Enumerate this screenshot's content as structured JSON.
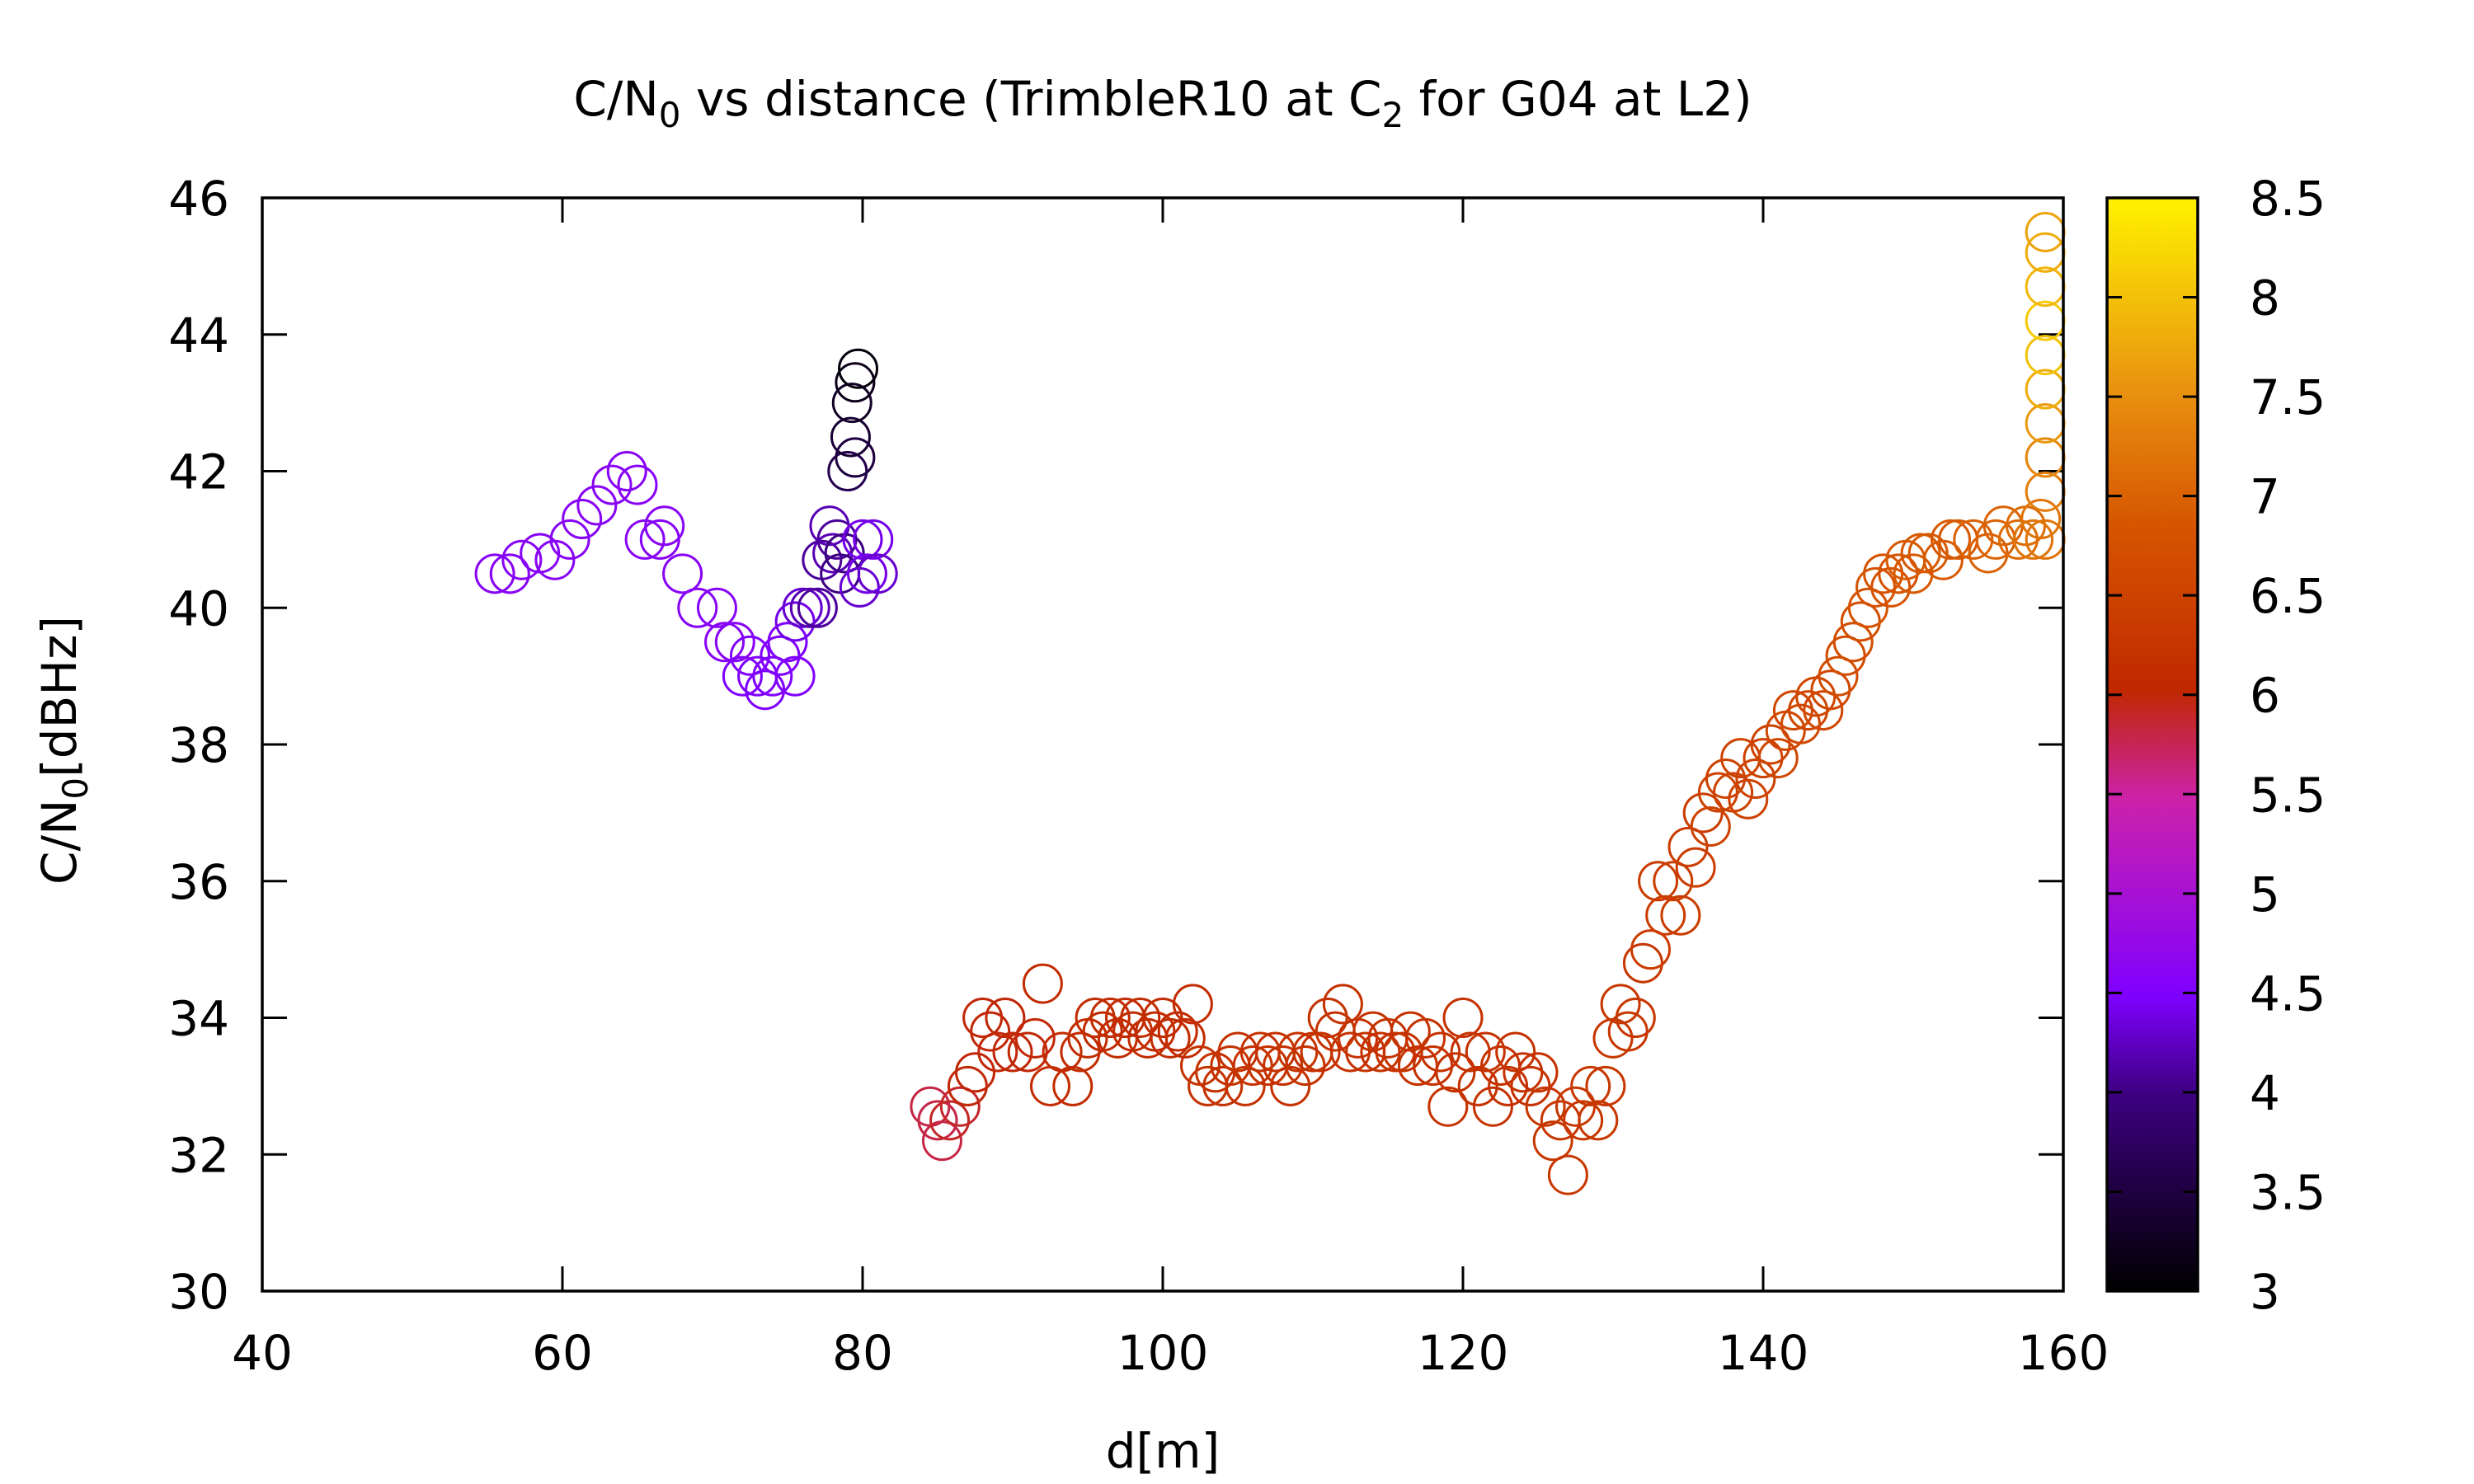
{
  "chart_data": {
    "type": "scatter",
    "title": "C/N₀ vs distance (TrimbleR10 at C₂ for G04 at L2)",
    "title_parts": {
      "pre": "C/N",
      "sub1": "0",
      "mid": " vs distance (TrimbleR10 at C",
      "sub2": "2",
      "post": " for G04 at L2)"
    },
    "xlabel": "d[m]",
    "ylabel": "C/N₀[dBHz]",
    "ylabel_parts": {
      "pre": "C/N",
      "sub": "0",
      "post": "[dBHz]"
    },
    "xlim": [
      40,
      160
    ],
    "ylim": [
      30,
      46
    ],
    "x_ticks": [
      40,
      60,
      80,
      100,
      120,
      140,
      160
    ],
    "y_ticks": [
      30,
      32,
      34,
      36,
      38,
      40,
      42,
      44,
      46
    ],
    "grid": false,
    "legend": "none",
    "marker": "open circle",
    "colorbar": {
      "range": [
        3,
        8.5
      ],
      "ticks": [
        "3",
        "3.5",
        "4",
        "4.5",
        "5",
        "5.5",
        "6",
        "6.5",
        "7",
        "7.5",
        "8",
        "8.5"
      ],
      "palette": [
        "#000000",
        "#3c0080",
        "#7f00ff",
        "#cc22aa",
        "#d63200",
        "#e8800a",
        "#ffe800",
        "#fff000"
      ]
    },
    "points": [
      [
        55.5,
        40.5,
        4.6
      ],
      [
        56.5,
        40.5,
        4.6
      ],
      [
        57.3,
        40.7,
        4.6
      ],
      [
        58.5,
        40.8,
        4.6
      ],
      [
        59.5,
        40.7,
        4.6
      ],
      [
        60.5,
        41.0,
        4.6
      ],
      [
        61.3,
        41.3,
        4.6
      ],
      [
        62.3,
        41.5,
        4.6
      ],
      [
        63.3,
        41.8,
        4.6
      ],
      [
        64.3,
        42.0,
        4.6
      ],
      [
        65.0,
        41.8,
        4.6
      ],
      [
        65.5,
        41.0,
        4.6
      ],
      [
        66.5,
        41.0,
        4.6
      ],
      [
        66.8,
        41.2,
        4.6
      ],
      [
        68.0,
        40.5,
        4.6
      ],
      [
        69.0,
        40.0,
        4.6
      ],
      [
        70.3,
        40.0,
        4.6
      ],
      [
        70.8,
        39.5,
        4.6
      ],
      [
        71.5,
        39.5,
        4.6
      ],
      [
        72.0,
        39.0,
        4.5
      ],
      [
        72.5,
        39.3,
        4.5
      ],
      [
        73.0,
        39.0,
        4.5
      ],
      [
        73.5,
        38.8,
        4.5
      ],
      [
        74.0,
        39.0,
        4.5
      ],
      [
        74.5,
        39.3,
        4.5
      ],
      [
        75.0,
        39.5,
        4.5
      ],
      [
        75.5,
        39.0,
        4.5
      ],
      [
        75.5,
        39.8,
        4.4
      ],
      [
        76.0,
        40.0,
        4.3
      ],
      [
        76.5,
        40.0,
        4.2
      ],
      [
        77.0,
        40.0,
        4.1
      ],
      [
        77.3,
        40.7,
        4.1
      ],
      [
        77.8,
        41.2,
        4.2
      ],
      [
        78.0,
        40.8,
        4.2
      ],
      [
        78.3,
        41.0,
        4.1
      ],
      [
        78.5,
        40.5,
        4.0
      ],
      [
        78.8,
        40.8,
        4.0
      ],
      [
        79.0,
        42.0,
        3.6
      ],
      [
        79.2,
        42.5,
        3.4
      ],
      [
        79.3,
        43.0,
        3.3
      ],
      [
        79.5,
        43.3,
        3.2
      ],
      [
        79.7,
        43.5,
        3.1
      ],
      [
        79.5,
        42.2,
        3.5
      ],
      [
        79.8,
        40.3,
        4.3
      ],
      [
        80.0,
        41.0,
        4.4
      ],
      [
        80.3,
        40.5,
        4.4
      ],
      [
        80.7,
        41.0,
        4.4
      ],
      [
        81.0,
        40.5,
        4.3
      ],
      [
        84.5,
        32.7,
        5.8
      ],
      [
        85.0,
        32.5,
        5.8
      ],
      [
        85.3,
        32.2,
        5.8
      ],
      [
        85.8,
        32.5,
        5.9
      ],
      [
        86.5,
        32.7,
        5.9
      ],
      [
        87.0,
        33.0,
        6.0
      ],
      [
        87.5,
        33.2,
        6.0
      ],
      [
        88.0,
        34.0,
        6.0
      ],
      [
        88.5,
        33.8,
        6.0
      ],
      [
        89.0,
        33.5,
        6.0
      ],
      [
        89.5,
        34.0,
        6.0
      ],
      [
        90.0,
        33.5,
        6.0
      ],
      [
        91.0,
        33.5,
        6.0
      ],
      [
        91.5,
        33.7,
        6.0
      ],
      [
        92.0,
        34.5,
        6.1
      ],
      [
        92.5,
        33.0,
        6.1
      ],
      [
        93.3,
        33.5,
        6.1
      ],
      [
        94.0,
        33.0,
        6.1
      ],
      [
        94.5,
        33.5,
        6.1
      ],
      [
        95.0,
        33.7,
        6.1
      ],
      [
        95.5,
        34.0,
        6.1
      ],
      [
        96.0,
        33.8,
        6.1
      ],
      [
        96.5,
        34.0,
        6.1
      ],
      [
        97.0,
        33.7,
        6.1
      ],
      [
        97.5,
        34.0,
        6.1
      ],
      [
        98.0,
        33.8,
        6.1
      ],
      [
        98.5,
        34.0,
        6.1
      ],
      [
        99.0,
        33.7,
        6.1
      ],
      [
        99.5,
        33.8,
        6.1
      ],
      [
        100.0,
        34.0,
        6.1
      ],
      [
        100.5,
        33.7,
        6.1
      ],
      [
        101.0,
        33.8,
        6.1
      ],
      [
        101.5,
        33.7,
        6.1
      ],
      [
        102.0,
        34.2,
        6.1
      ],
      [
        102.5,
        33.3,
        6.2
      ],
      [
        103.0,
        33.0,
        6.2
      ],
      [
        103.5,
        33.2,
        6.2
      ],
      [
        104.0,
        33.0,
        6.2
      ],
      [
        104.5,
        33.3,
        6.2
      ],
      [
        105.0,
        33.5,
        6.2
      ],
      [
        105.5,
        33.0,
        6.2
      ],
      [
        106.0,
        33.3,
        6.2
      ],
      [
        106.5,
        33.5,
        6.2
      ],
      [
        107.0,
        33.3,
        6.2
      ],
      [
        107.5,
        33.5,
        6.2
      ],
      [
        108.0,
        33.3,
        6.2
      ],
      [
        108.5,
        33.0,
        6.2
      ],
      [
        109.0,
        33.5,
        6.2
      ],
      [
        109.5,
        33.3,
        6.2
      ],
      [
        110.0,
        33.5,
        6.2
      ],
      [
        110.5,
        33.5,
        6.2
      ],
      [
        111.0,
        34.0,
        6.2
      ],
      [
        111.5,
        33.8,
        6.2
      ],
      [
        112.0,
        34.2,
        6.2
      ],
      [
        112.5,
        33.5,
        6.2
      ],
      [
        113.0,
        33.7,
        6.2
      ],
      [
        113.5,
        33.5,
        6.2
      ],
      [
        114.0,
        33.8,
        6.2
      ],
      [
        114.5,
        33.5,
        6.2
      ],
      [
        115.0,
        33.7,
        6.2
      ],
      [
        115.5,
        33.5,
        6.2
      ],
      [
        116.0,
        33.5,
        6.2
      ],
      [
        116.5,
        33.8,
        6.2
      ],
      [
        117.0,
        33.3,
        6.2
      ],
      [
        117.5,
        33.7,
        6.2
      ],
      [
        118.0,
        33.3,
        6.2
      ],
      [
        118.5,
        33.5,
        6.2
      ],
      [
        119.0,
        32.7,
        6.2
      ],
      [
        119.5,
        33.2,
        6.2
      ],
      [
        120.0,
        34.0,
        6.2
      ],
      [
        120.5,
        33.5,
        6.2
      ],
      [
        121.0,
        33.0,
        6.2
      ],
      [
        121.5,
        33.5,
        6.2
      ],
      [
        122.0,
        32.7,
        6.2
      ],
      [
        122.5,
        33.3,
        6.2
      ],
      [
        123.0,
        33.0,
        6.2
      ],
      [
        123.5,
        33.5,
        6.2
      ],
      [
        124.0,
        33.2,
        6.2
      ],
      [
        124.5,
        33.0,
        6.2
      ],
      [
        125.0,
        33.2,
        6.2
      ],
      [
        125.5,
        32.7,
        6.3
      ],
      [
        126.0,
        32.2,
        6.3
      ],
      [
        126.5,
        32.5,
        6.3
      ],
      [
        127.0,
        31.7,
        6.3
      ],
      [
        127.5,
        32.7,
        6.3
      ],
      [
        128.0,
        32.5,
        6.3
      ],
      [
        128.5,
        33.0,
        6.3
      ],
      [
        129.0,
        32.5,
        6.3
      ],
      [
        129.5,
        33.0,
        6.3
      ],
      [
        130.0,
        33.7,
        6.3
      ],
      [
        130.5,
        34.2,
        6.3
      ],
      [
        131.0,
        33.8,
        6.3
      ],
      [
        131.5,
        34.0,
        6.3
      ],
      [
        132.0,
        34.8,
        6.3
      ],
      [
        132.5,
        35.0,
        6.4
      ],
      [
        133.0,
        36.0,
        6.4
      ],
      [
        133.5,
        35.5,
        6.4
      ],
      [
        134.0,
        36.0,
        6.4
      ],
      [
        134.5,
        35.5,
        6.4
      ],
      [
        135.0,
        36.5,
        6.4
      ],
      [
        135.5,
        36.2,
        6.4
      ],
      [
        136.0,
        37.0,
        6.4
      ],
      [
        136.5,
        36.8,
        6.5
      ],
      [
        137.0,
        37.3,
        6.5
      ],
      [
        137.5,
        37.5,
        6.5
      ],
      [
        138.0,
        37.3,
        6.5
      ],
      [
        138.5,
        37.8,
        6.5
      ],
      [
        139.0,
        37.2,
        6.5
      ],
      [
        139.5,
        37.5,
        6.5
      ],
      [
        140.0,
        37.8,
        6.5
      ],
      [
        140.5,
        38.0,
        6.5
      ],
      [
        141.0,
        37.8,
        6.6
      ],
      [
        141.5,
        38.2,
        6.6
      ],
      [
        142.0,
        38.5,
        6.6
      ],
      [
        142.5,
        38.3,
        6.6
      ],
      [
        143.0,
        38.5,
        6.6
      ],
      [
        143.5,
        38.7,
        6.6
      ],
      [
        144.0,
        38.5,
        6.6
      ],
      [
        144.5,
        38.8,
        6.6
      ],
      [
        145.0,
        39.0,
        6.7
      ],
      [
        145.5,
        39.3,
        6.7
      ],
      [
        146.0,
        39.5,
        6.7
      ],
      [
        146.5,
        39.8,
        6.7
      ],
      [
        147.0,
        40.0,
        6.8
      ],
      [
        147.5,
        40.3,
        6.8
      ],
      [
        148.0,
        40.5,
        6.8
      ],
      [
        148.5,
        40.3,
        6.8
      ],
      [
        149.0,
        40.5,
        6.8
      ],
      [
        149.5,
        40.7,
        6.9
      ],
      [
        150.0,
        40.5,
        6.9
      ],
      [
        150.5,
        40.8,
        6.9
      ],
      [
        151.0,
        40.8,
        6.9
      ],
      [
        152.0,
        40.7,
        6.9
      ],
      [
        152.5,
        41.0,
        6.9
      ],
      [
        153.0,
        41.0,
        6.9
      ],
      [
        154.0,
        41.0,
        7.0
      ],
      [
        155.0,
        40.8,
        7.0
      ],
      [
        155.5,
        41.0,
        7.0
      ],
      [
        156.0,
        41.2,
        7.0
      ],
      [
        157.0,
        41.0,
        7.1
      ],
      [
        157.5,
        41.2,
        7.1
      ],
      [
        158.0,
        41.0,
        7.2
      ],
      [
        158.5,
        41.3,
        7.2
      ],
      [
        158.8,
        41.7,
        7.3
      ],
      [
        158.8,
        42.2,
        7.4
      ],
      [
        158.8,
        42.7,
        7.6
      ],
      [
        158.8,
        43.2,
        7.8
      ],
      [
        158.8,
        43.7,
        8.0
      ],
      [
        158.8,
        44.2,
        8.1
      ],
      [
        158.8,
        44.7,
        7.9
      ],
      [
        158.8,
        45.2,
        7.8
      ],
      [
        158.8,
        45.5,
        7.7
      ],
      [
        158.8,
        41.0,
        7.2
      ]
    ]
  }
}
